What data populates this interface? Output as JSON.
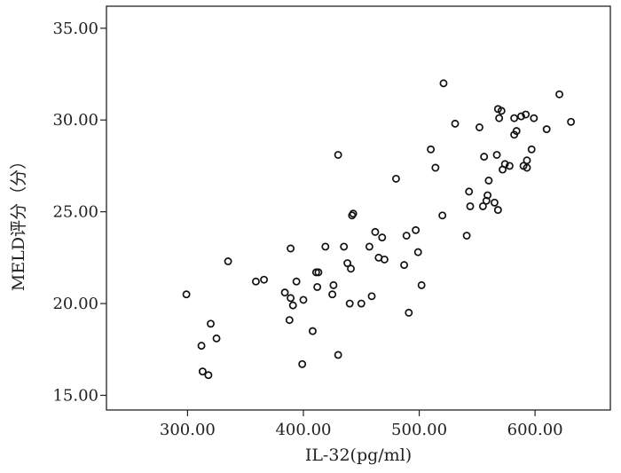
{
  "chart_data": {
    "type": "scatter",
    "title": "",
    "xlabel": "IL-32(pg/ml)",
    "ylabel": "MELD评分（分）",
    "xlim": [
      230,
      665
    ],
    "ylim": [
      14.2,
      36.2
    ],
    "xticks": [
      300,
      400,
      500,
      600
    ],
    "xtick_labels": [
      "300.00",
      "400.00",
      "500.00",
      "600.00"
    ],
    "yticks": [
      15,
      20,
      25,
      30,
      35
    ],
    "ytick_labels": [
      "15.00",
      "20.00",
      "25.00",
      "30.00",
      "35.00"
    ],
    "grid": false,
    "legend": "none",
    "marker": "open-circle",
    "points": [
      [
        299,
        20.5
      ],
      [
        312,
        17.7
      ],
      [
        313,
        16.3
      ],
      [
        318,
        16.1
      ],
      [
        320,
        18.9
      ],
      [
        325,
        18.1
      ],
      [
        335,
        22.3
      ],
      [
        359,
        21.2
      ],
      [
        366,
        21.3
      ],
      [
        384,
        20.6
      ],
      [
        388,
        19.1
      ],
      [
        389,
        20.3
      ],
      [
        389,
        23.0
      ],
      [
        391,
        19.9
      ],
      [
        394,
        21.2
      ],
      [
        399,
        16.7
      ],
      [
        400,
        20.2
      ],
      [
        408,
        18.5
      ],
      [
        411,
        21.7
      ],
      [
        412,
        20.9
      ],
      [
        413,
        21.7
      ],
      [
        419,
        23.1
      ],
      [
        425,
        20.5
      ],
      [
        426,
        21.0
      ],
      [
        430,
        28.1
      ],
      [
        430,
        17.2
      ],
      [
        435,
        23.1
      ],
      [
        438,
        22.2
      ],
      [
        440,
        20.0
      ],
      [
        441,
        21.9
      ],
      [
        442,
        24.8
      ],
      [
        443,
        24.9
      ],
      [
        450,
        20.0
      ],
      [
        457,
        23.1
      ],
      [
        459,
        20.4
      ],
      [
        462,
        23.9
      ],
      [
        465,
        22.5
      ],
      [
        468,
        23.6
      ],
      [
        470,
        22.4
      ],
      [
        480,
        26.8
      ],
      [
        487,
        22.1
      ],
      [
        489,
        23.7
      ],
      [
        491,
        19.5
      ],
      [
        497,
        24.0
      ],
      [
        499,
        22.8
      ],
      [
        502,
        21.0
      ],
      [
        510,
        28.4
      ],
      [
        514,
        27.4
      ],
      [
        520,
        24.8
      ],
      [
        521,
        32.0
      ],
      [
        531,
        29.8
      ],
      [
        541,
        23.7
      ],
      [
        543,
        26.1
      ],
      [
        544,
        25.3
      ],
      [
        552,
        29.6
      ],
      [
        555,
        25.3
      ],
      [
        556,
        28.0
      ],
      [
        558,
        25.6
      ],
      [
        559,
        25.9
      ],
      [
        560,
        26.7
      ],
      [
        565,
        25.5
      ],
      [
        567,
        28.1
      ],
      [
        568,
        25.1
      ],
      [
        568,
        30.6
      ],
      [
        569,
        30.1
      ],
      [
        571,
        30.5
      ],
      [
        572,
        27.3
      ],
      [
        574,
        27.6
      ],
      [
        578,
        27.5
      ],
      [
        582,
        30.1
      ],
      [
        582,
        29.2
      ],
      [
        584,
        29.4
      ],
      [
        588,
        30.2
      ],
      [
        590,
        27.5
      ],
      [
        592,
        30.3
      ],
      [
        593,
        27.4
      ],
      [
        593,
        27.8
      ],
      [
        597,
        28.4
      ],
      [
        599,
        30.1
      ],
      [
        610,
        29.5
      ],
      [
        621,
        31.4
      ],
      [
        631,
        29.9
      ]
    ]
  }
}
